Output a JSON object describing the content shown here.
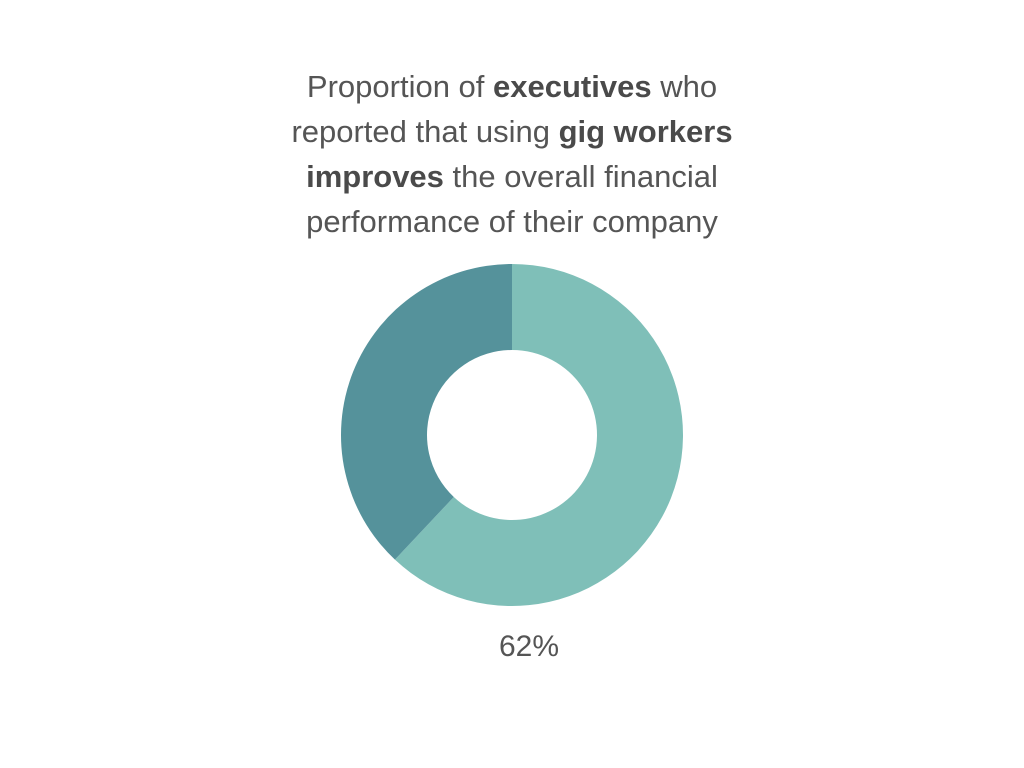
{
  "title": {
    "lines": [
      [
        {
          "text": "Proportion of ",
          "bold": false
        },
        {
          "text": "executives",
          "bold": true
        },
        {
          "text": " who",
          "bold": false
        }
      ],
      [
        {
          "text": "reported that using ",
          "bold": false
        },
        {
          "text": "gig workers",
          "bold": true
        }
      ],
      [
        {
          "text": "improves",
          "bold": true
        },
        {
          "text": " the overall financial",
          "bold": false
        }
      ],
      [
        {
          "text": "performance of their company",
          "bold": false
        }
      ]
    ]
  },
  "chart_data": {
    "type": "pie",
    "donut": true,
    "title": "Proportion of executives who reported that using gig workers improves the overall financial performance of their company",
    "slices": [
      {
        "value": 62,
        "color": "#7fbfb8"
      },
      {
        "value": 38,
        "color": "#55929b"
      }
    ],
    "data_labels": [
      "62%"
    ]
  }
}
